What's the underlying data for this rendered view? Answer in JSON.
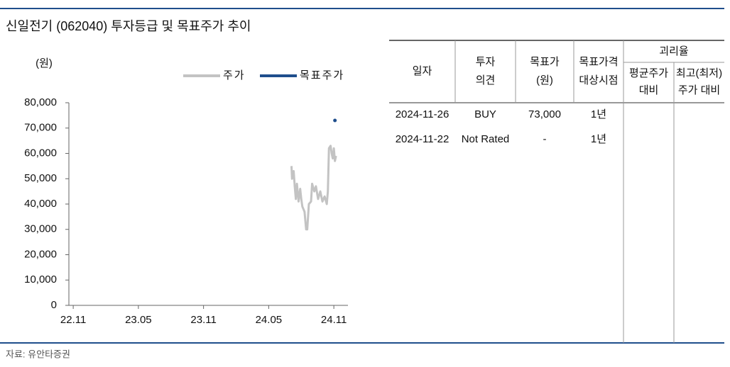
{
  "title": "신일전기 (062040) 투자등급 및 목표주가 추이",
  "chart_data": {
    "type": "line",
    "y_label": "(원)",
    "xlim": [
      -0.4,
      25.3
    ],
    "xticks": [
      {
        "value": 0,
        "label": "22.11"
      },
      {
        "value": 6,
        "label": "23.05"
      },
      {
        "value": 12,
        "label": "23.11"
      },
      {
        "value": 18,
        "label": "24.05"
      },
      {
        "value": 24,
        "label": "24.11"
      }
    ],
    "ylim": [
      0,
      80000
    ],
    "yticks": [
      0,
      {
        "value": 10000,
        "label": "10,000"
      },
      {
        "value": 20000,
        "label": "20,000"
      },
      {
        "value": 30000,
        "label": "30,000"
      },
      {
        "value": 40000,
        "label": "40,000"
      },
      {
        "value": 50000,
        "label": "50,000"
      },
      {
        "value": 60000,
        "label": "60,000"
      },
      {
        "value": 70000,
        "label": "70,000"
      },
      {
        "value": 80000,
        "label": "80,000"
      }
    ],
    "series": [
      {
        "name": "주가",
        "color": "#c3c3c3",
        "x": [
          20.1,
          20.15,
          20.3,
          20.4,
          20.5,
          20.6,
          20.75,
          20.9,
          21.0,
          21.1,
          21.3,
          21.45,
          21.55,
          21.7,
          21.9,
          22.0,
          22.2,
          22.35,
          22.55,
          22.75,
          22.95,
          23.15,
          23.35,
          23.45,
          23.55,
          23.7,
          23.8,
          23.9,
          24.0,
          24.1,
          24.2
        ],
        "values": [
          55000,
          50000,
          53000,
          47000,
          42000,
          48000,
          41000,
          46000,
          42000,
          39000,
          37000,
          30000,
          30000,
          40000,
          41000,
          48000,
          45000,
          47000,
          42000,
          45000,
          41000,
          43000,
          40000,
          45000,
          62000,
          63000,
          60000,
          58000,
          62000,
          57000,
          59000
        ]
      },
      {
        "name": "목표주가",
        "color": "#1f4e8c",
        "x": [
          24.1
        ],
        "values": [
          73000
        ]
      }
    ]
  },
  "table": {
    "columns": [
      [
        "일자"
      ],
      [
        "투자",
        "의견"
      ],
      [
        "목표가",
        "(원)"
      ],
      [
        "목표가격",
        "대상시점"
      ]
    ],
    "group": "괴리율",
    "subcolumns": [
      [
        "평균주가",
        "대비"
      ],
      [
        "최고(최저)",
        "주가 대비"
      ]
    ],
    "rows": [
      [
        "2024-11-26",
        "BUY",
        "73,000",
        "1년"
      ],
      [
        "2024-11-22",
        "Not Rated",
        "-",
        "1년"
      ]
    ]
  },
  "source": "자료: 유안타증권"
}
